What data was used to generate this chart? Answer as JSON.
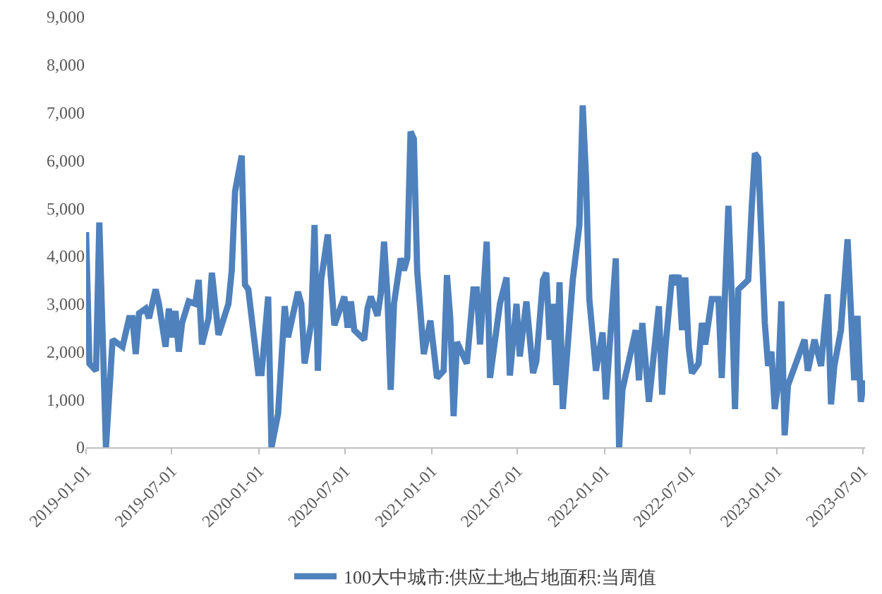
{
  "chart_data": {
    "type": "line",
    "x": [
      "2019-01-01",
      "2019-01-08",
      "2019-01-22",
      "2019-01-29",
      "2019-02-12",
      "2019-02-26",
      "2019-03-19",
      "2019-04-02",
      "2019-04-09",
      "2019-04-16",
      "2019-04-23",
      "2019-05-07",
      "2019-05-14",
      "2019-05-28",
      "2019-06-04",
      "2019-06-18",
      "2019-06-25",
      "2019-07-02",
      "2019-07-09",
      "2019-07-16",
      "2019-07-23",
      "2019-08-06",
      "2019-08-20",
      "2019-08-27",
      "2019-09-03",
      "2019-09-17",
      "2019-09-24",
      "2019-10-08",
      "2019-10-29",
      "2019-11-05",
      "2019-11-12",
      "2019-11-26",
      "2019-12-03",
      "2019-12-10",
      "2019-12-31",
      "2020-01-07",
      "2020-01-21",
      "2020-01-28",
      "2020-02-11",
      "2020-02-25",
      "2020-03-03",
      "2020-03-24",
      "2020-03-31",
      "2020-04-07",
      "2020-04-21",
      "2020-04-28",
      "2020-05-05",
      "2020-05-12",
      "2020-05-26",
      "2020-06-02",
      "2020-06-09",
      "2020-06-30",
      "2020-07-07",
      "2020-07-14",
      "2020-07-21",
      "2020-08-11",
      "2020-08-18",
      "2020-08-25",
      "2020-09-08",
      "2020-09-15",
      "2020-09-22",
      "2020-09-29",
      "2020-10-06",
      "2020-10-13",
      "2020-10-27",
      "2020-11-03",
      "2020-11-10",
      "2020-11-17",
      "2020-11-24",
      "2020-12-01",
      "2020-12-15",
      "2020-12-29",
      "2021-01-12",
      "2021-01-26",
      "2021-02-02",
      "2021-02-09",
      "2021-02-16",
      "2021-02-23",
      "2021-03-16",
      "2021-03-30",
      "2021-04-06",
      "2021-04-13",
      "2021-04-27",
      "2021-05-04",
      "2021-05-25",
      "2021-06-08",
      "2021-06-15",
      "2021-06-29",
      "2021-07-06",
      "2021-07-20",
      "2021-08-03",
      "2021-08-10",
      "2021-08-24",
      "2021-08-31",
      "2021-09-07",
      "2021-09-14",
      "2021-09-21",
      "2021-09-28",
      "2021-10-05",
      "2021-10-26",
      "2021-11-09",
      "2021-11-16",
      "2021-11-23",
      "2021-11-30",
      "2021-12-14",
      "2021-12-28",
      "2022-01-04",
      "2022-01-25",
      "2022-02-01",
      "2022-02-08",
      "2022-03-08",
      "2022-03-15",
      "2022-03-22",
      "2022-04-05",
      "2022-04-26",
      "2022-05-03",
      "2022-05-10",
      "2022-05-24",
      "2022-05-31",
      "2022-06-07",
      "2022-06-14",
      "2022-06-21",
      "2022-06-28",
      "2022-07-05",
      "2022-07-19",
      "2022-07-26",
      "2022-08-02",
      "2022-08-16",
      "2022-08-30",
      "2022-09-06",
      "2022-09-20",
      "2022-09-27",
      "2022-10-04",
      "2022-10-11",
      "2022-11-01",
      "2022-11-08",
      "2022-11-15",
      "2022-11-22",
      "2022-12-06",
      "2022-12-13",
      "2022-12-20",
      "2022-12-27",
      "2023-01-03",
      "2023-01-10",
      "2023-01-17",
      "2023-01-24",
      "2023-02-28",
      "2023-03-07",
      "2023-03-21",
      "2023-04-04",
      "2023-04-18",
      "2023-04-25",
      "2023-05-02",
      "2023-05-16",
      "2023-05-30",
      "2023-06-13",
      "2023-06-20",
      "2023-06-27",
      "2023-07-04"
    ],
    "series": [
      {
        "name": "100大中城市:供应土地占地面积:当周值",
        "color": "#4f81bd",
        "values": [
          4500,
          1750,
          1600,
          4700,
          0,
          2250,
          2100,
          2700,
          2700,
          1950,
          2800,
          2900,
          2700,
          3300,
          3000,
          2100,
          2900,
          2300,
          2850,
          2000,
          2600,
          3050,
          3000,
          3500,
          2150,
          2700,
          3650,
          2350,
          3000,
          3700,
          5350,
          6100,
          3400,
          3300,
          1550,
          1550,
          3150,
          0,
          700,
          2950,
          2300,
          3250,
          3000,
          1750,
          2600,
          4650,
          1600,
          3500,
          4450,
          3500,
          2550,
          3150,
          2500,
          3050,
          2450,
          2250,
          2900,
          3150,
          2750,
          3200,
          4300,
          3200,
          1200,
          3000,
          3950,
          3700,
          3950,
          6600,
          6450,
          3700,
          1950,
          2650,
          1450,
          1600,
          3600,
          2700,
          650,
          2200,
          1750,
          3300,
          3300,
          2150,
          4300,
          1450,
          3000,
          3550,
          1500,
          3000,
          1900,
          3050,
          1550,
          1800,
          3500,
          3650,
          2250,
          3000,
          1300,
          3450,
          800,
          3500,
          4650,
          7150,
          5650,
          3100,
          1600,
          2400,
          1000,
          3950,
          0,
          1200,
          2450,
          1400,
          2600,
          950,
          2950,
          1100,
          2100,
          3600,
          3400,
          3600,
          2450,
          3550,
          2100,
          1550,
          1750,
          2600,
          2150,
          3100,
          3100,
          1450,
          5050,
          3200,
          800,
          3300,
          3500,
          4950,
          6150,
          6050,
          2600,
          1700,
          2000,
          800,
          1300,
          3050,
          250,
          1300,
          2250,
          1600,
          2250,
          1700,
          3200,
          900,
          1700,
          2450,
          4350,
          1400,
          2750,
          950,
          1400
        ]
      }
    ],
    "xlim": [
      "2019-01-01",
      "2023-07-06"
    ],
    "xticks": [
      "2019-01-01",
      "2019-07-01",
      "2020-01-01",
      "2020-07-01",
      "2021-01-01",
      "2021-07-01",
      "2022-01-01",
      "2022-07-01",
      "2023-01-01",
      "2023-07-01"
    ],
    "ylim": [
      0,
      9000
    ],
    "yticks": [
      0,
      {
        "value": 1000,
        "label": "1,000"
      },
      {
        "value": 2000,
        "label": "2,000"
      },
      {
        "value": 3000,
        "label": "3,000"
      },
      {
        "value": 4000,
        "label": "4,000"
      },
      {
        "value": 5000,
        "label": "5,000"
      },
      {
        "value": 6000,
        "label": "6,000"
      },
      {
        "value": 7000,
        "label": "7,000"
      },
      {
        "value": 8000,
        "label": "8,000"
      },
      {
        "value": 9000,
        "label": "9,000"
      }
    ],
    "legend": "bottom",
    "line_style": "solid"
  }
}
